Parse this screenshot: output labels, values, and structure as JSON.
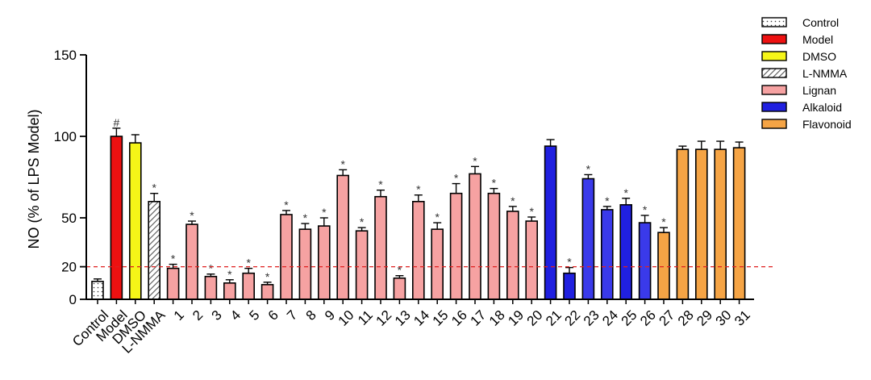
{
  "chart_data": {
    "type": "bar",
    "title": "",
    "xlabel": "",
    "ylabel": "NO (% of LPS Model)",
    "ylim": [
      0,
      150
    ],
    "yticks": [
      0,
      20,
      50,
      100,
      150
    ],
    "threshold": {
      "value": 20,
      "color": "#e02020",
      "style": "dashed"
    },
    "grid": false,
    "legend_position": "top-right",
    "categories": [
      "Control",
      "Model",
      "DMSO",
      "L-NMMA",
      "1",
      "2",
      "3",
      "4",
      "5",
      "6",
      "7",
      "8",
      "9",
      "10",
      "11",
      "12",
      "13",
      "14",
      "15",
      "16",
      "17",
      "18",
      "19",
      "20",
      "21",
      "22",
      "23",
      "24",
      "25",
      "26",
      "27",
      "28",
      "29",
      "30",
      "31"
    ],
    "values": [
      11,
      100,
      96,
      60,
      19,
      46,
      14,
      10,
      16,
      9,
      52,
      43,
      45,
      76,
      42,
      63,
      13,
      60,
      43,
      65,
      77,
      65,
      54,
      48,
      94,
      16,
      74,
      55,
      58,
      47,
      41,
      92,
      92,
      92,
      93
    ],
    "errors": [
      1.5,
      5,
      5,
      5,
      2.5,
      2,
      1.5,
      2,
      3,
      1.5,
      2.5,
      3.5,
      5,
      3.5,
      2,
      4,
      1.5,
      4,
      4,
      6,
      4.5,
      3,
      3,
      2.5,
      4,
      3.5,
      2.5,
      2,
      4,
      4.5,
      3,
      2,
      5,
      5,
      3.5
    ],
    "groups": [
      "Control",
      "Model",
      "DMSO",
      "L-NMMA",
      "Lignan",
      "Lignan",
      "Lignan",
      "Lignan",
      "Lignan",
      "Lignan",
      "Lignan",
      "Lignan",
      "Lignan",
      "Lignan",
      "Lignan",
      "Lignan",
      "Lignan",
      "Lignan",
      "Lignan",
      "Lignan",
      "Lignan",
      "Lignan",
      "Lignan",
      "Lignan",
      "Alkaloid",
      "Alkaloid",
      "Alkaloid",
      "Alkaloid",
      "Alkaloid",
      "Alkaloid",
      "Flavonoid",
      "Flavonoid",
      "Flavonoid",
      "Flavonoid",
      "Flavonoid"
    ],
    "bar_colors": [
      "#ffffff",
      "#ee1111",
      "#f5f518",
      "#ffffff",
      "#f6a2a2",
      "#f6a2a2",
      "#f6a2a2",
      "#f6a2a2",
      "#f6a2a2",
      "#f6a2a2",
      "#f6a2a2",
      "#f6a2a2",
      "#f6a2a2",
      "#f6a2a2",
      "#f6a2a2",
      "#f6a2a2",
      "#f6a2a2",
      "#f6a2a2",
      "#f6a2a2",
      "#f6a2a2",
      "#f6a2a2",
      "#f6a2a2",
      "#f6a2a2",
      "#f6a2a2",
      "#2020e0",
      "#2020e0",
      "#3a3aea",
      "#3a3aea",
      "#2020e0",
      "#3a3aea",
      "#f5a445",
      "#f5a445",
      "#f5a445",
      "#f5a445",
      "#f5a445"
    ],
    "marks": [
      "",
      "#",
      "",
      "*",
      "*",
      "*",
      "*",
      "*",
      "*",
      "*",
      "*",
      "*",
      "*",
      "*",
      "*",
      "*",
      "*",
      "*",
      "*",
      "*",
      "*",
      "*",
      "*",
      "*",
      "",
      "*",
      "*",
      "*",
      "*",
      "*",
      "*",
      "",
      "",
      "",
      ""
    ],
    "legend": [
      {
        "label": "Control",
        "color": "#ffffff",
        "pattern": "dotted"
      },
      {
        "label": "Model",
        "color": "#ee1111",
        "pattern": "solid"
      },
      {
        "label": "DMSO",
        "color": "#f5f518",
        "pattern": "solid"
      },
      {
        "label": "L-NMMA",
        "color": "#ffffff",
        "pattern": "hatched"
      },
      {
        "label": "Lignan",
        "color": "#f6a2a2",
        "pattern": "solid"
      },
      {
        "label": "Alkaloid",
        "color": "#2020e0",
        "pattern": "solid"
      },
      {
        "label": "Flavonoid",
        "color": "#f5a445",
        "pattern": "solid"
      }
    ]
  }
}
